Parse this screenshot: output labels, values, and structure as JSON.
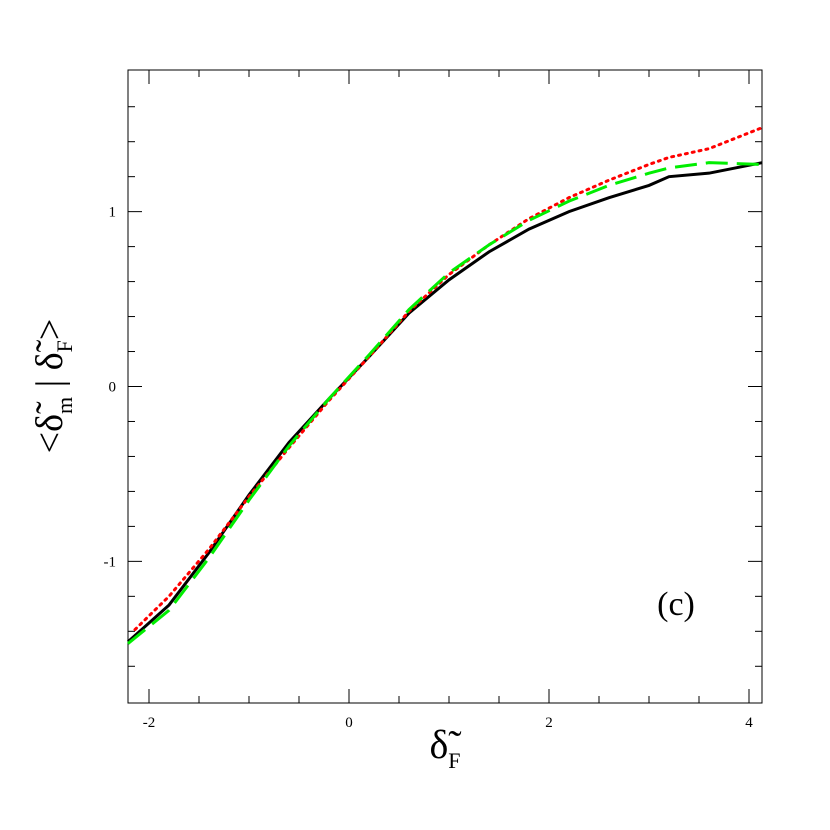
{
  "chart_data": {
    "type": "line",
    "xlabel": [
      "δ̃",
      "F"
    ],
    "ylabel": [
      "<δ̃",
      "m",
      " | δ̃",
      "F",
      ">"
    ],
    "annotation": "(c)",
    "xlim": [
      -2.21,
      4.13
    ],
    "ylim": [
      -1.81,
      1.81
    ],
    "xticks": [
      -2,
      0,
      2,
      4
    ],
    "yticks": [
      -1,
      0,
      1
    ],
    "xminor": [
      -1.5,
      -1,
      -0.5,
      0.5,
      1,
      1.5,
      2.5,
      3,
      3.5
    ],
    "yminor": [
      -1.6,
      -1.4,
      -1.2,
      -0.8,
      -0.6,
      -0.4,
      -0.2,
      0.2,
      0.4,
      0.6,
      0.8,
      1.2,
      1.4,
      1.6
    ],
    "series": [
      {
        "color": "#000000",
        "style": "solid",
        "x": [
          -2.21,
          -1.8,
          -1.4,
          -1.0,
          -0.6,
          -0.2,
          0.2,
          0.6,
          1.0,
          1.4,
          1.8,
          2.2,
          2.6,
          3.0,
          3.2,
          3.6,
          4.13
        ],
        "values": [
          -1.46,
          -1.25,
          -0.95,
          -0.62,
          -0.32,
          -0.07,
          0.17,
          0.42,
          0.61,
          0.77,
          0.9,
          1.0,
          1.08,
          1.15,
          1.2,
          1.22,
          1.28
        ]
      },
      {
        "color": "#ff0000",
        "style": "dotted",
        "x": [
          -2.14,
          -1.8,
          -1.4,
          -1.0,
          -0.6,
          -0.2,
          0.2,
          0.6,
          1.0,
          1.4,
          1.8,
          2.2,
          2.6,
          3.0,
          3.2,
          3.6,
          4.13
        ],
        "values": [
          -1.39,
          -1.2,
          -0.93,
          -0.63,
          -0.35,
          -0.08,
          0.17,
          0.43,
          0.64,
          0.81,
          0.96,
          1.08,
          1.18,
          1.27,
          1.31,
          1.36,
          1.48
        ]
      },
      {
        "color": "#00ee00",
        "style": "dashed",
        "x": [
          -2.21,
          -1.8,
          -1.4,
          -1.0,
          -0.6,
          -0.2,
          0.2,
          0.6,
          1.0,
          1.4,
          1.8,
          2.2,
          2.6,
          3.0,
          3.2,
          3.6,
          4.13
        ],
        "values": [
          -1.47,
          -1.28,
          -0.98,
          -0.65,
          -0.34,
          -0.07,
          0.18,
          0.44,
          0.65,
          0.81,
          0.95,
          1.06,
          1.15,
          1.22,
          1.25,
          1.28,
          1.27
        ]
      }
    ]
  }
}
